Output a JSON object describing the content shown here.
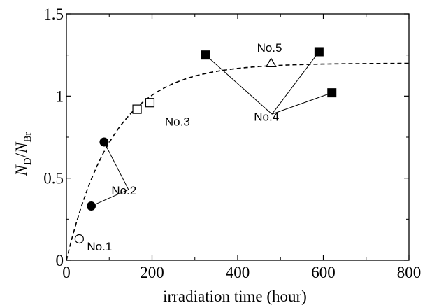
{
  "chart_data": {
    "type": "scatter",
    "xlabel": "irradiation time (hour)",
    "ylabel": {
      "main": "N",
      "main_sub": "D",
      "sep": "/",
      "den": "N",
      "den_sub": "Br"
    },
    "xlim": [
      0,
      800
    ],
    "ylim": [
      0,
      1.5
    ],
    "xticks": [
      0,
      200,
      400,
      600,
      800
    ],
    "yticks": [
      0,
      0.5,
      1,
      1.5
    ],
    "xtick_labels": [
      "0",
      "200",
      "400",
      "600",
      "800"
    ],
    "ytick_labels": [
      "0",
      "0.5",
      "1",
      "1.5"
    ],
    "grid": false,
    "series": [
      {
        "name": "No.1",
        "marker": "circle-open",
        "points": [
          {
            "x": 30,
            "y": 0.13
          }
        ]
      },
      {
        "name": "No.2",
        "marker": "circle-filled",
        "points": [
          {
            "x": 58,
            "y": 0.33
          },
          {
            "x": 88,
            "y": 0.72
          }
        ]
      },
      {
        "name": "No.3",
        "marker": "square-open",
        "points": [
          {
            "x": 165,
            "y": 0.92
          },
          {
            "x": 195,
            "y": 0.96
          }
        ]
      },
      {
        "name": "No.4",
        "marker": "square-filled",
        "points": [
          {
            "x": 325,
            "y": 1.25
          },
          {
            "x": 590,
            "y": 1.27
          },
          {
            "x": 620,
            "y": 1.02
          }
        ]
      },
      {
        "name": "No.5",
        "marker": "triangle-open",
        "points": [
          {
            "x": 478,
            "y": 1.2
          }
        ]
      }
    ],
    "fit_curve": {
      "style": "dashed",
      "form": "y = A (1 - exp(-x / tau))",
      "A": 1.2,
      "tau": 110
    },
    "annotations": [
      {
        "text": "No.1",
        "x": 48,
        "y": 0.06,
        "targets": []
      },
      {
        "text": "No.2",
        "x": 105,
        "y": 0.4,
        "targets": [
          {
            "x": 58,
            "y": 0.33
          },
          {
            "x": 88,
            "y": 0.72
          }
        ],
        "anchor": {
          "x": 145,
          "y": 0.43
        }
      },
      {
        "text": "No.3",
        "x": 230,
        "y": 0.82,
        "targets": [],
        "note": "label placed right of open squares"
      },
      {
        "text": "No.4",
        "x": 438,
        "y": 0.85,
        "targets": [
          {
            "x": 325,
            "y": 1.25
          },
          {
            "x": 590,
            "y": 1.27
          },
          {
            "x": 620,
            "y": 1.02
          }
        ],
        "anchor": {
          "x": 480,
          "y": 0.89
        }
      },
      {
        "text": "No.5",
        "x": 445,
        "y": 1.27,
        "targets": []
      }
    ]
  }
}
